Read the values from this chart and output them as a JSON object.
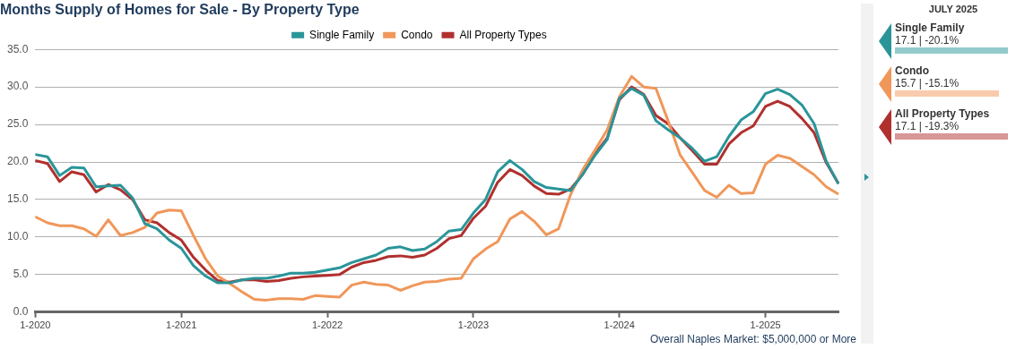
{
  "chart_data": {
    "type": "line",
    "title": "Months Supply of Homes for Sale - By Property Type",
    "categories": [
      "1-2020",
      null,
      null,
      null,
      null,
      null,
      null,
      null,
      null,
      null,
      null,
      null,
      "1-2021",
      null,
      null,
      null,
      null,
      null,
      null,
      null,
      null,
      null,
      null,
      null,
      "1-2022",
      null,
      null,
      null,
      null,
      null,
      null,
      null,
      null,
      null,
      null,
      null,
      "1-2023",
      null,
      null,
      null,
      null,
      null,
      null,
      null,
      null,
      null,
      null,
      null,
      "1-2024",
      null,
      null,
      null,
      null,
      null,
      null,
      null,
      null,
      null,
      null,
      null,
      "1-2025",
      null,
      null,
      null,
      null,
      null,
      null
    ],
    "series": [
      {
        "name": "Single Family",
        "color": "#2a9599",
        "values": [
          21.0,
          20.7,
          18.2,
          19.3,
          19.2,
          16.7,
          16.8,
          16.9,
          15.2,
          11.8,
          11.1,
          9.6,
          8.5,
          6.2,
          4.8,
          3.9,
          3.9,
          4.3,
          4.5,
          4.5,
          4.8,
          5.2,
          5.2,
          5.3,
          5.6,
          5.9,
          6.6,
          7.1,
          7.6,
          8.5,
          8.7,
          8.2,
          8.4,
          9.4,
          10.8,
          11.0,
          13.2,
          15.0,
          18.7,
          20.2,
          19.0,
          17.4,
          16.6,
          16.4,
          16.2,
          18.4,
          20.9,
          23.0,
          28.5,
          29.8,
          28.9,
          25.5,
          24.3,
          23.2,
          21.8,
          20.1,
          20.7,
          23.4,
          25.6,
          26.7,
          29.1,
          29.7,
          29.0,
          27.6,
          25.1,
          20.1,
          17.1
        ]
      },
      {
        "name": "Condo",
        "color": "#f0975a",
        "values": [
          12.7,
          11.9,
          11.5,
          11.5,
          11.1,
          10.1,
          12.3,
          10.2,
          10.6,
          11.3,
          13.2,
          13.6,
          13.5,
          10.2,
          7.1,
          4.8,
          3.8,
          2.7,
          1.7,
          1.6,
          1.8,
          1.8,
          1.7,
          2.2,
          2.1,
          2.0,
          3.6,
          4.0,
          3.7,
          3.6,
          2.9,
          3.5,
          4.0,
          4.1,
          4.4,
          4.5,
          7.1,
          8.4,
          9.4,
          12.4,
          13.4,
          12.1,
          10.3,
          11.1,
          15.7,
          19.0,
          21.6,
          24.3,
          28.7,
          31.4,
          30.0,
          29.8,
          25.5,
          20.9,
          18.6,
          16.2,
          15.3,
          16.9,
          15.8,
          15.9,
          19.7,
          20.9,
          20.5,
          19.4,
          18.3,
          16.7,
          15.7
        ]
      },
      {
        "name": "All Property Types",
        "color": "#b0302e",
        "values": [
          20.2,
          19.8,
          17.4,
          18.7,
          18.3,
          16.0,
          17.0,
          16.3,
          15.0,
          12.3,
          11.9,
          10.6,
          9.6,
          7.3,
          5.6,
          4.2,
          4.0,
          4.3,
          4.3,
          4.1,
          4.2,
          4.5,
          4.7,
          4.8,
          4.9,
          5.0,
          6.0,
          6.6,
          6.9,
          7.4,
          7.5,
          7.3,
          7.6,
          8.5,
          9.8,
          10.2,
          12.5,
          14.1,
          17.3,
          19.0,
          18.2,
          16.8,
          15.8,
          15.7,
          16.4,
          18.4,
          21.1,
          23.2,
          28.3,
          30.0,
          29.0,
          26.2,
          25.1,
          23.2,
          21.5,
          19.7,
          19.7,
          22.4,
          23.9,
          24.8,
          27.4,
          28.1,
          27.4,
          25.8,
          23.9,
          19.9,
          17.1
        ]
      }
    ],
    "ylim": [
      0,
      35
    ],
    "yticks": [
      {
        "value": 0,
        "label": "0.0"
      },
      {
        "value": 5,
        "label": "5.0"
      },
      {
        "value": 10,
        "label": "10.0"
      },
      {
        "value": 15,
        "label": "15.0"
      },
      {
        "value": 20,
        "label": "20.0"
      },
      {
        "value": 25,
        "label": "25.0"
      },
      {
        "value": 30,
        "label": "30.0"
      },
      {
        "value": 35,
        "label": "35.0"
      }
    ],
    "grid": "y",
    "legend": "top",
    "marker": "none",
    "line_style": "solid",
    "annotations": [
      "JULY 2025",
      "17.1 | -20.1%",
      "15.7 | -15.1%",
      "17.1 | -19.3%",
      "Overall Naples Market: $5,000,000 or More"
    ]
  }
}
